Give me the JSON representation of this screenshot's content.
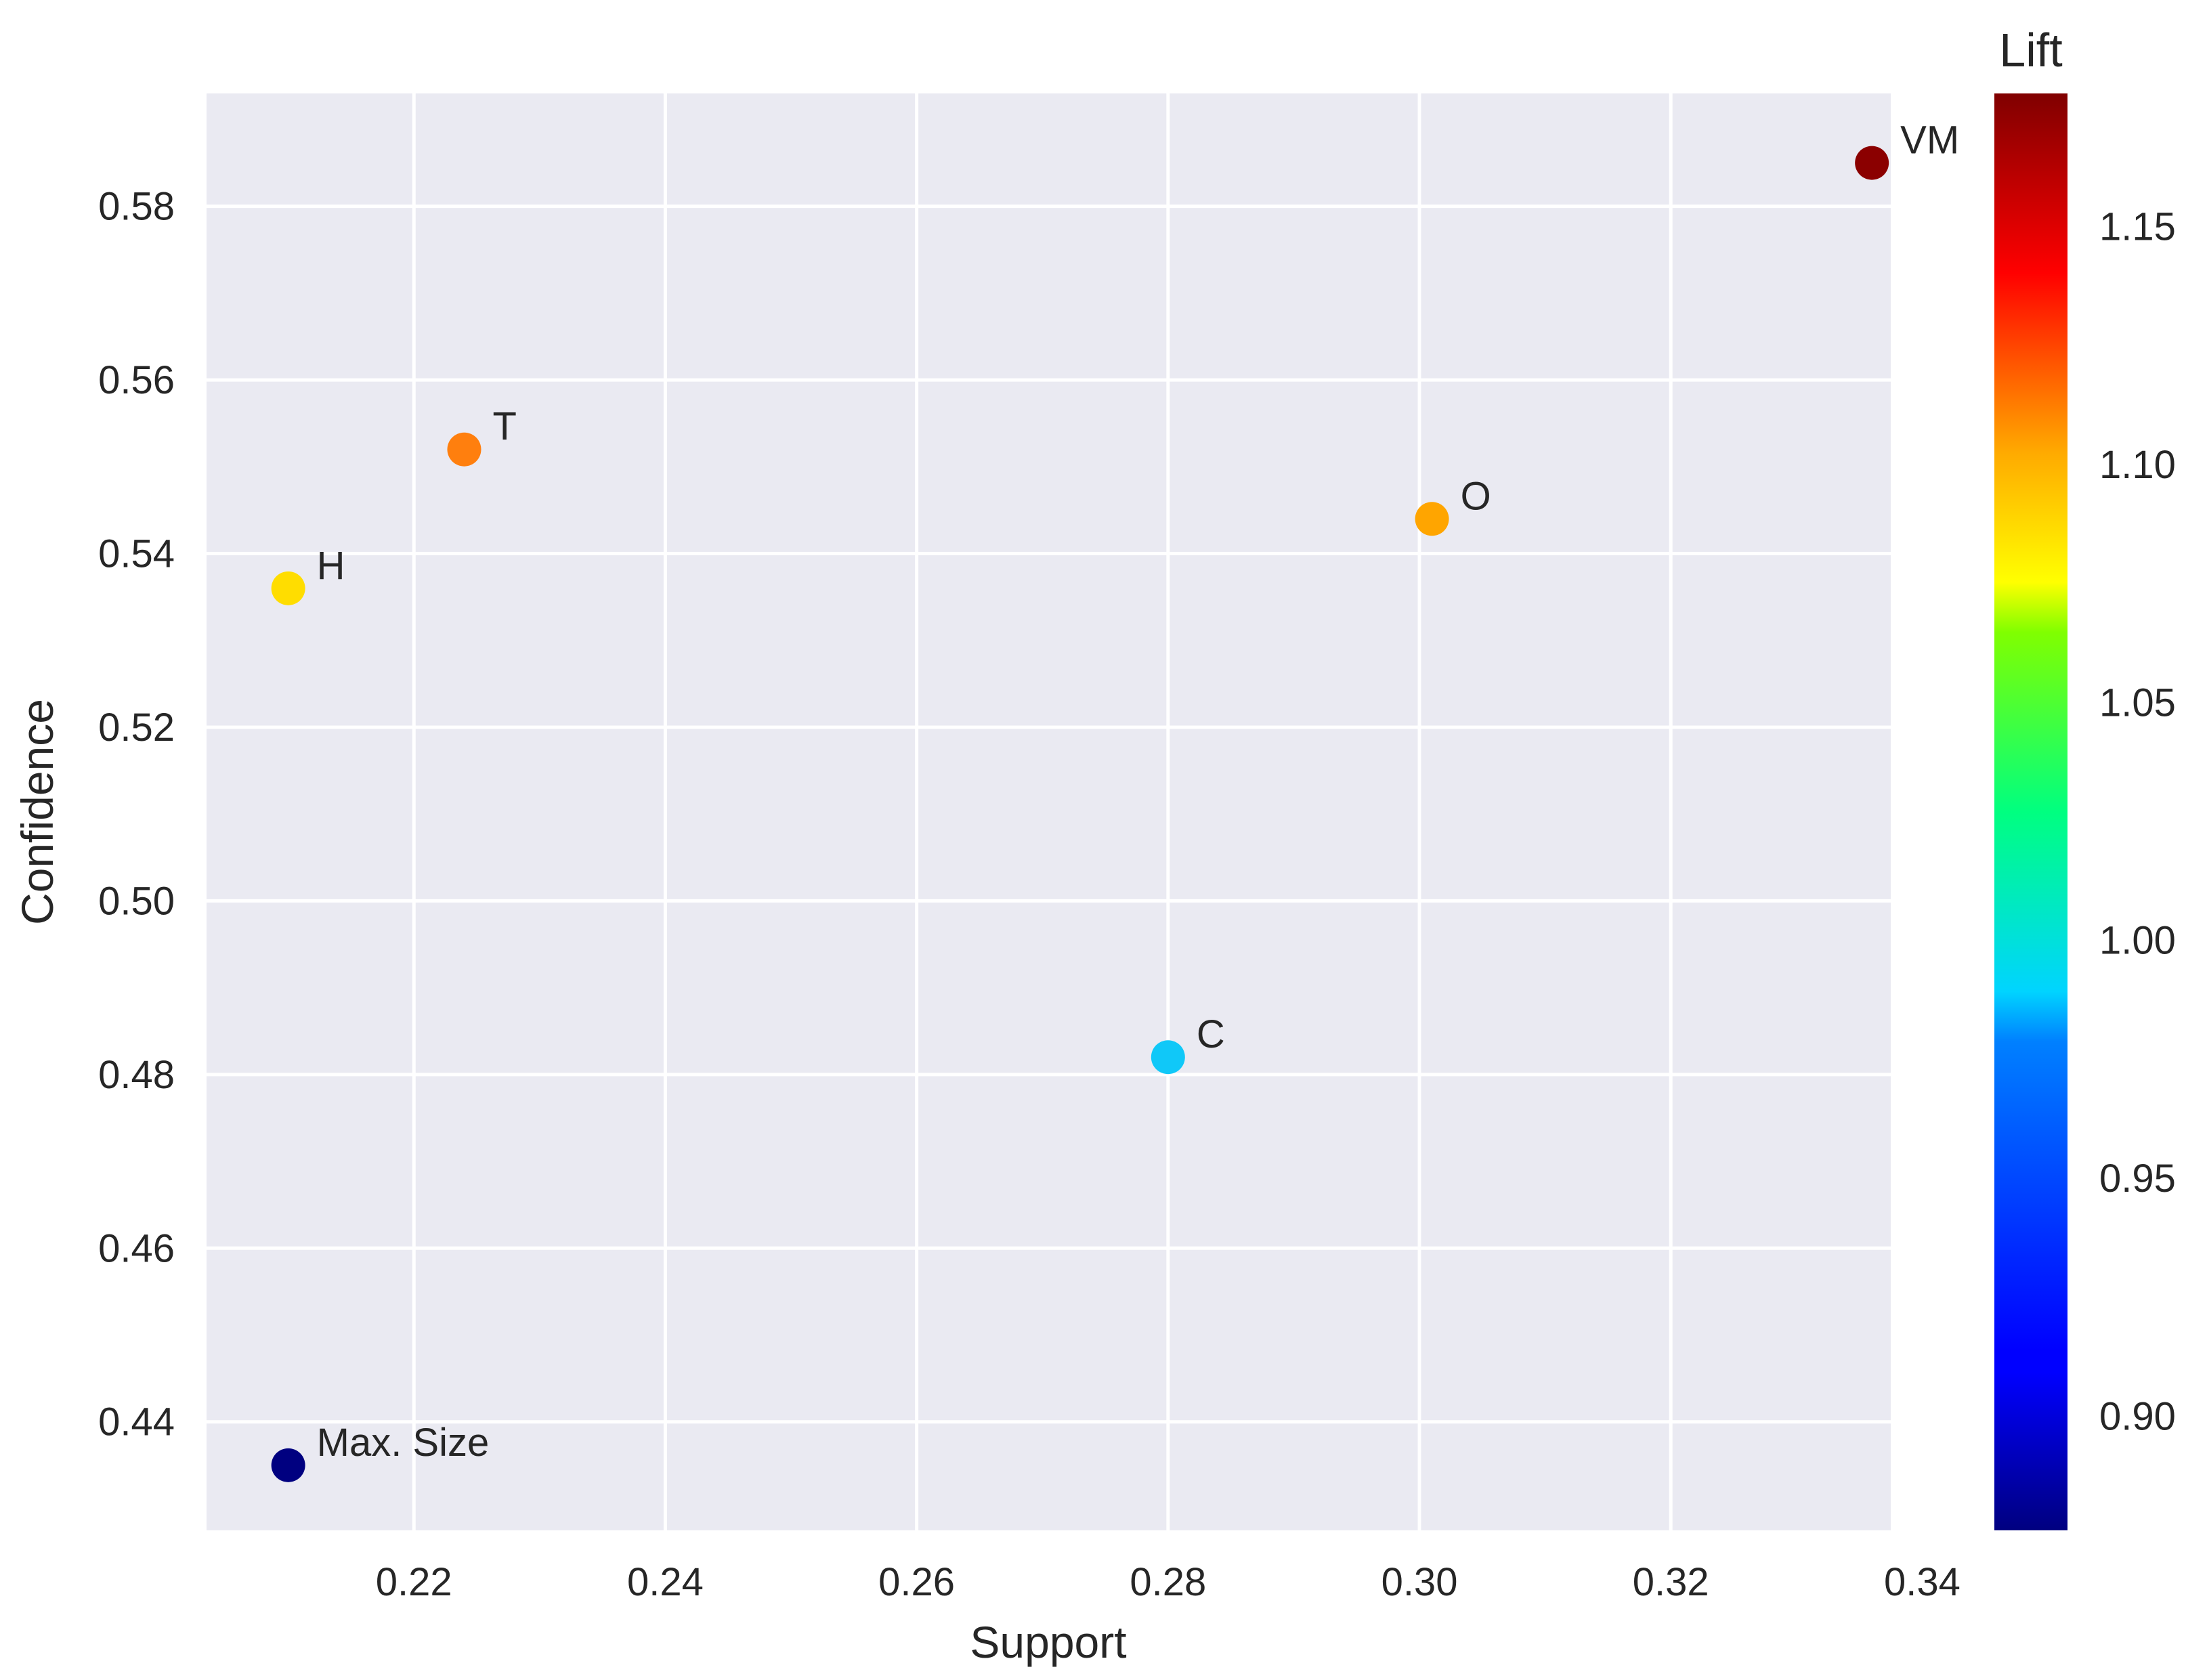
{
  "chart_data": {
    "type": "scatter",
    "xlabel": "Support",
    "ylabel": "Confidence",
    "xlim": [
      0.2035,
      0.3375
    ],
    "ylim": [
      0.4275,
      0.593
    ],
    "xticks": [
      0.22,
      0.24,
      0.26,
      0.28,
      0.3,
      0.32,
      0.34
    ],
    "xtick_labels": [
      "0.22",
      "0.24",
      "0.26",
      "0.28",
      "0.30",
      "0.32",
      "0.34"
    ],
    "yticks": [
      0.44,
      0.46,
      0.48,
      0.5,
      0.52,
      0.54,
      0.56,
      0.58
    ],
    "ytick_labels": [
      "0.44",
      "0.46",
      "0.48",
      "0.50",
      "0.52",
      "0.54",
      "0.56",
      "0.58"
    ],
    "grid": true,
    "background": "#eaeaf2",
    "colorbar": {
      "title": "Lift",
      "colormap": "jet",
      "range": [
        0.876,
        1.178
      ],
      "ticks": [
        0.9,
        0.95,
        1.0,
        1.05,
        1.1,
        1.15
      ],
      "tick_labels": [
        "0.90",
        "0.95",
        "1.00",
        "1.05",
        "1.10",
        "1.15"
      ]
    },
    "points": [
      {
        "label": "VM",
        "support": 0.336,
        "confidence": 0.585,
        "lift": 1.178,
        "color": "#8b0000"
      },
      {
        "label": "T",
        "support": 0.224,
        "confidence": 0.552,
        "lift": 1.115,
        "color": "#ff7f0e"
      },
      {
        "label": "O",
        "support": 0.301,
        "confidence": 0.544,
        "lift": 1.095,
        "color": "#ffa500"
      },
      {
        "label": "H",
        "support": 0.21,
        "confidence": 0.536,
        "lift": 1.078,
        "color": "#ffdd00"
      },
      {
        "label": "C",
        "support": 0.28,
        "confidence": 0.482,
        "lift": 0.975,
        "color": "#10c8f8"
      },
      {
        "label": "Max. Size",
        "support": 0.21,
        "confidence": 0.435,
        "lift": 0.876,
        "color": "#000080"
      }
    ]
  }
}
